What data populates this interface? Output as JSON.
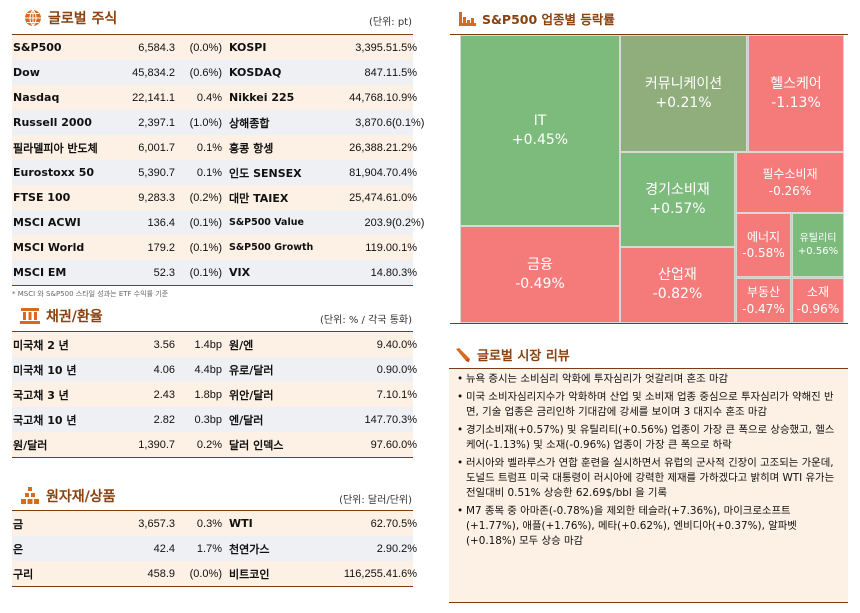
{
  "equity": {
    "title": "글로벌 주식",
    "unit": "(단위: pt)",
    "note": "* MSCI 와 S&P500 스타일 성과는 ETF 수익률 기준",
    "rows": [
      [
        "S&P500",
        "6,584.3",
        "(0.0%)",
        "KOSPI",
        "3,395.5",
        "1.5%"
      ],
      [
        "Dow",
        "45,834.2",
        "(0.6%)",
        "KOSDAQ",
        "847.1",
        "1.5%"
      ],
      [
        "Nasdaq",
        "22,141.1",
        "0.4%",
        "Nikkei 225",
        "44,768.1",
        "0.9%"
      ],
      [
        "Russell 2000",
        "2,397.1",
        "(1.0%)",
        "상해종합",
        "3,870.6",
        "(0.1%)"
      ],
      [
        "필라델피아 반도체",
        "6,001.7",
        "0.1%",
        "홍콩 항셍",
        "26,388.2",
        "1.2%"
      ],
      [
        "Eurostoxx 50",
        "5,390.7",
        "0.1%",
        "인도 SENSEX",
        "81,904.7",
        "0.4%"
      ],
      [
        "FTSE 100",
        "9,283.3",
        "(0.2%)",
        "대만 TAIEX",
        "25,474.6",
        "1.0%"
      ],
      [
        "MSCI ACWI",
        "136.4",
        "(0.1%)",
        "S&P500 Value",
        "203.9",
        "(0.2%)"
      ],
      [
        "MSCI World",
        "179.2",
        "(0.1%)",
        "S&P500 Growth",
        "119.0",
        "0.1%"
      ],
      [
        "MSCI EM",
        "52.3",
        "(0.1%)",
        "VIX",
        "14.8",
        "0.3%"
      ]
    ]
  },
  "bonds": {
    "title": "채권/환율",
    "unit": "(단위: % / 각국 통화)",
    "rows": [
      [
        "미국채 2 년",
        "3.56",
        "1.4bp",
        "원/엔",
        "9.4",
        "0.0%"
      ],
      [
        "미국채 10 년",
        "4.06",
        "4.4bp",
        "유로/달러",
        "0.9",
        "0.0%"
      ],
      [
        "국고채 3 년",
        "2.43",
        "1.8bp",
        "위안/달러",
        "7.1",
        "0.1%"
      ],
      [
        "국고채 10 년",
        "2.82",
        "0.3bp",
        "엔/달러",
        "147.7",
        "0.3%"
      ],
      [
        "원/달러",
        "1,390.7",
        "0.2%",
        "달러 인덱스",
        "97.6",
        "0.0%"
      ]
    ]
  },
  "commodities": {
    "title": "원자재/상품",
    "unit": "(단위: 달러/단위)",
    "rows": [
      [
        "금",
        "3,657.3",
        "0.3%",
        "WTI",
        "62.7",
        "0.5%"
      ],
      [
        "은",
        "42.4",
        "1.7%",
        "천연가스",
        "2.9",
        "0.2%"
      ],
      [
        "구리",
        "458.9",
        "(0.0%)",
        "비트코인",
        "116,255.4",
        "1.6%"
      ]
    ]
  },
  "treemap": {
    "title": "S&P500 업종별 등락률",
    "colors": {
      "up": "#7dbb7d",
      "flat_up": "#8fae7b",
      "down": "#f57b7b"
    },
    "sectors": [
      {
        "name": "IT",
        "change": "+0.45%"
      },
      {
        "name": "금융",
        "change": "-0.49%"
      },
      {
        "name": "커뮤니케이션",
        "change": "+0.21%"
      },
      {
        "name": "헬스케어",
        "change": "-1.13%"
      },
      {
        "name": "경기소비재",
        "change": "+0.57%"
      },
      {
        "name": "산업재",
        "change": "-0.82%"
      },
      {
        "name": "필수소비재",
        "change": "-0.26%"
      },
      {
        "name": "에너지",
        "change": "-0.58%"
      },
      {
        "name": "유틸리티",
        "change": "+0.56%"
      },
      {
        "name": "부동산",
        "change": "-0.47%"
      },
      {
        "name": "소재",
        "change": "-0.96%"
      }
    ]
  },
  "review": {
    "title": "글로벌 시장 리뷰",
    "bullets": [
      "뉴욕 증시는 소비심리 악화에 투자심리가 엇갈리며 혼조 마감",
      "미국 소비자심리지수가 악화하며 산업 및 소비재 업종 중심으로 투자심리가 약해진 반면, 기술 업종은 금리인하 기대감에 강세를 보이며 3 대지수 혼조 마감",
      "경기소비재(+0.57%) 및 유틸리티(+0.56%) 업종이 가장 큰 폭으로 상승했고, 헬스케어(-1.13%) 및 소재(-0.96%) 업종이 가장 큰 폭으로 하락",
      "러시아와 벨라루스가 연합 훈련을 실시하면서 유럽의 군사적 긴장이 고조되는 가운데, 도널드 트럼프 미국 대통령이 러시아에 강력한 제재를 가하겠다고 밝히며 WTI 유가는 전일대비 0.51% 상승한 62.69$/bbl 을 기록",
      "M7 종목 중 아마존(-0.78%)을 제외한 테슬라(+7.36%), 마이크로소프트(+1.77%), 애플(+1.76%), 메타(+0.62%), 엔비디아(+0.37%), 알파벳(+0.18%) 모두 상승 마감"
    ]
  }
}
